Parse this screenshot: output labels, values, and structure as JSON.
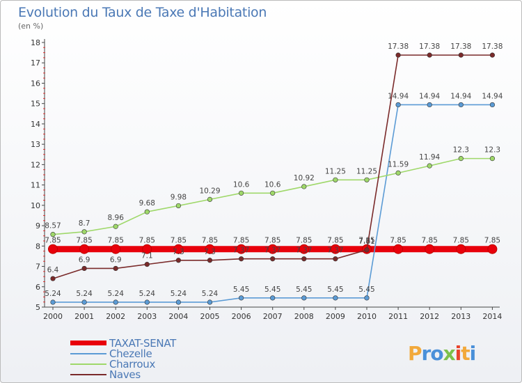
{
  "title": "Evolution du Taux de Taxe d'Habitation",
  "subtitle": "(en %)",
  "logo": "Proxiti",
  "chart_data": {
    "type": "line",
    "title": "Evolution du Taux de Taxe d'Habitation",
    "subtitle": "(en %)",
    "x": [
      2000,
      2001,
      2002,
      2003,
      2004,
      2005,
      2006,
      2007,
      2008,
      2009,
      2010,
      2011,
      2012,
      2013,
      2014
    ],
    "ylim": [
      5,
      18
    ],
    "yticks": [
      5,
      6,
      7,
      8,
      9,
      10,
      11,
      12,
      13,
      14,
      15,
      16,
      17,
      18
    ],
    "grid": false,
    "legend": "bottom-left",
    "series": [
      {
        "name": "TAXAT-SENAT",
        "color": "#e8000b",
        "values": [
          7.85,
          7.85,
          7.85,
          7.85,
          7.85,
          7.85,
          7.85,
          7.85,
          7.85,
          7.85,
          7.85,
          7.85,
          7.85,
          7.85,
          7.85
        ]
      },
      {
        "name": "Chezelle",
        "color": "#5b9bd5",
        "values": [
          5.24,
          5.24,
          5.24,
          5.24,
          5.24,
          5.24,
          5.45,
          5.45,
          5.45,
          5.45,
          5.45,
          14.94,
          14.94,
          14.94,
          14.94
        ]
      },
      {
        "name": "Charroux",
        "color": "#9fd86a",
        "values": [
          8.57,
          8.7,
          8.96,
          9.68,
          9.98,
          10.29,
          10.6,
          10.6,
          10.92,
          11.25,
          11.25,
          11.59,
          11.94,
          12.3,
          12.3
        ]
      },
      {
        "name": "Naves",
        "color": "#7a2a2a",
        "values": [
          6.4,
          6.9,
          6.9,
          7.1,
          7.3,
          7.3,
          7.37,
          7.37,
          7.37,
          7.37,
          7.81,
          17.38,
          17.38,
          17.38,
          17.38
        ]
      }
    ],
    "data_labels": {
      "TAXAT-SENAT": [
        "7.85",
        "7.85",
        "7.85",
        "7.85",
        "7.85",
        "7.85",
        "7.85",
        "7.85",
        "7.85",
        "7.85",
        "7.85",
        "7.85",
        "7.85",
        "7.85",
        "7.85"
      ],
      "Chezelle": [
        "5.24",
        "5.24",
        "5.24",
        "5.24",
        "5.24",
        "5.24",
        "5.45",
        "5.45",
        "5.45",
        "5.45",
        "5.45",
        "14.94",
        "14.94",
        "14.94",
        "14.94"
      ],
      "Charroux": [
        "8.57",
        "8.7",
        "8.96",
        "9.68",
        "9.98",
        "10.29",
        "10.6",
        "10.6",
        "10.92",
        "11.25",
        "11.25",
        "11.59",
        "11.94",
        "12.3",
        "12.3"
      ],
      "Naves": [
        "6.4",
        "6.9",
        "6.9",
        "7.1",
        "7.3",
        "7.3",
        "7.37",
        "7.37",
        "7.37",
        "7.37",
        "7.81",
        "17.38",
        "17.38",
        "17.38",
        "17.38"
      ]
    }
  }
}
